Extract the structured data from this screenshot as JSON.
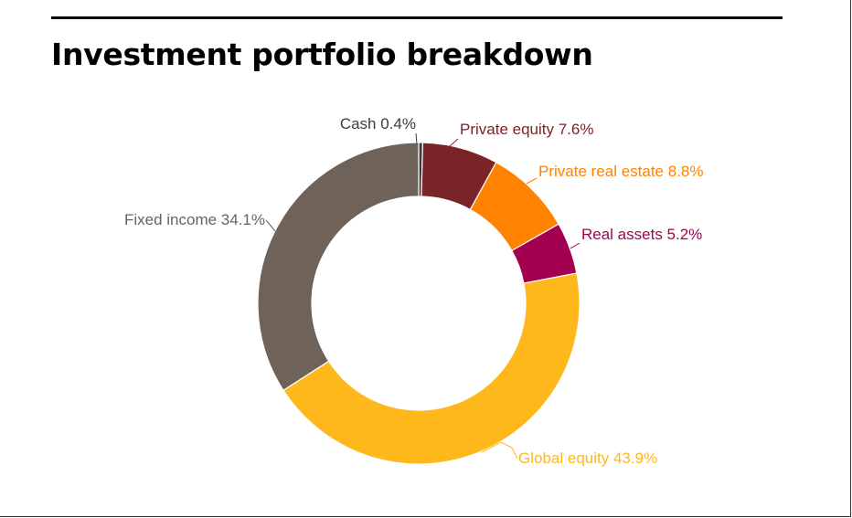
{
  "title": "Investment portfolio breakdown",
  "chart_data": {
    "type": "pie",
    "style": "donut",
    "title": "Investment portfolio breakdown",
    "unit": "%",
    "legend": "none",
    "slices": [
      {
        "name": "Cash",
        "value": 0.4,
        "label": "Cash 0.4%",
        "color": "#3c3c3c"
      },
      {
        "name": "Private equity",
        "value": 7.6,
        "label": "Private equity 7.6%",
        "color": "#7b2428"
      },
      {
        "name": "Private real estate",
        "value": 8.8,
        "label": "Private real estate 8.8%",
        "color": "#ff8200"
      },
      {
        "name": "Real assets",
        "value": 5.2,
        "label": "Real assets 5.2%",
        "color": "#a5004f"
      },
      {
        "name": "Global equity",
        "value": 43.9,
        "label": "Global equity 43.9%",
        "color": "#ffb81c"
      },
      {
        "name": "Fixed income",
        "value": 34.1,
        "label": "Fixed income 34.1%",
        "color": "#6e6259"
      }
    ],
    "label_colors": [
      "#3c3c3c",
      "#7b2428",
      "#ff8200",
      "#a5004f",
      "#ffb81c",
      "#6e6259"
    ]
  }
}
